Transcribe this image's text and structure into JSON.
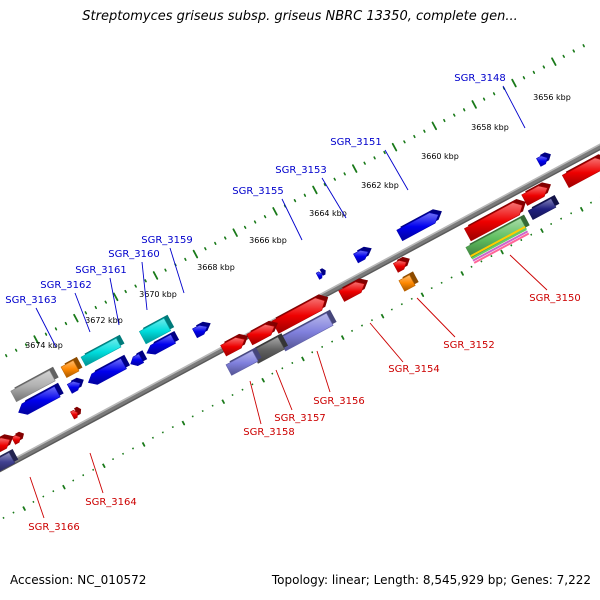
{
  "title": "Streptomyces griseus subsp. griseus NBRC 13350, complete gen...",
  "footer": {
    "accession": "Accession: NC_010572",
    "stats": "Topology: linear; Length: 8,545,929 bp; Genes: 7,222"
  },
  "colors": {
    "upper_label": "#0000cc",
    "lower_label": "#cc0000",
    "tick": "#1a7a1a",
    "backbone": "#808080",
    "gene_blue": "#0000ee",
    "gene_red": "#ee0000",
    "gene_orange": "#ff8800",
    "gene_cyan": "#00dddd",
    "gene_slate": "#8080dd",
    "gene_gray": "#b0b0b0"
  },
  "scale": {
    "labels": [
      "3656 kbp",
      "3658 kbp",
      "3660 kbp",
      "3662 kbp",
      "3664 kbp",
      "3666 kbp",
      "3668 kbp",
      "3670 kbp",
      "3672 kbp",
      "3674 kbp"
    ]
  },
  "upper_labels": [
    "SGR_3148",
    "SGR_3151",
    "SGR_3153",
    "SGR_3155",
    "SGR_3159",
    "SGR_3160",
    "SGR_3161",
    "SGR_3162",
    "SGR_3163"
  ],
  "lower_labels": [
    "SGR_3150",
    "SGR_3152",
    "SGR_3154",
    "SGR_3156",
    "SGR_3157",
    "SGR_3158",
    "SGR_3164",
    "SGR_3166"
  ]
}
